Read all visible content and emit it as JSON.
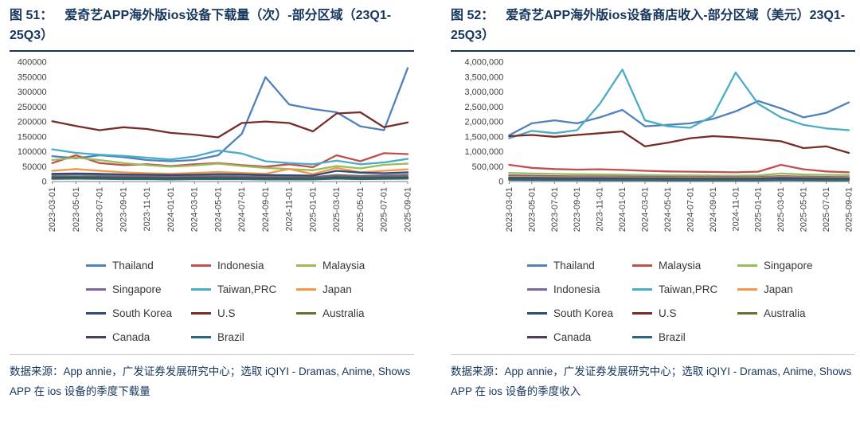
{
  "accent_color": "#17365D",
  "figures": [
    {
      "label": "图 51：",
      "title": "爱奇艺APP海外版ios设备下载量（次）-部分区域（23Q1-25Q3）",
      "source": "数据来源：App annie，广发证券发展研究中心；选取 iQIYI - Dramas, Anime, Shows APP 在 ios 设备的季度下载量"
    },
    {
      "label": "图 52：",
      "title": "爱奇艺APP海外版ios设备商店收入-部分区域（美元）23Q1-25Q3）",
      "source": "数据来源：App annie，广发证券发展研究中心；选取 iQIYI - Dramas, Anime, Shows APP 在 ios 设备的季度收入"
    }
  ],
  "chart_data": [
    {
      "type": "line",
      "title": "图 51： 爱奇艺APP海外版ios设备下载量（次）-部分区域（23Q1-25Q3）",
      "xlabel": "",
      "ylabel": "",
      "grid": false,
      "legend_position": "bottom",
      "ylim": [
        0,
        400000
      ],
      "ytick_values": [
        0,
        50000,
        100000,
        150000,
        200000,
        250000,
        300000,
        350000,
        400000
      ],
      "ytick_labels": [
        "0",
        "50000",
        "100000",
        "150000",
        "200000",
        "250000",
        "300000",
        "350000",
        "400000"
      ],
      "x": [
        "2023-03-01",
        "2023-05-01",
        "2023-07-01",
        "2023-09-01",
        "2023-11-01",
        "2024-01-01",
        "2024-03-01",
        "2024-05-01",
        "2024-07-01",
        "2024-09-01",
        "2024-11-01",
        "2025-01-01",
        "2025-03-01",
        "2025-05-01",
        "2025-07-01",
        "2025-09-01"
      ],
      "series": [
        {
          "name": "Thailand",
          "color": "#4F81BD",
          "values": [
            85000,
            78000,
            88000,
            82000,
            72000,
            68000,
            72000,
            88000,
            160000,
            350000,
            258000,
            243000,
            232000,
            185000,
            172000,
            380000
          ]
        },
        {
          "name": "Indonesia",
          "color": "#C0504D",
          "values": [
            62000,
            88000,
            62000,
            55000,
            58000,
            52000,
            58000,
            62000,
            55000,
            50000,
            58000,
            48000,
            88000,
            68000,
            95000,
            92000
          ]
        },
        {
          "name": "Malaysia",
          "color": "#9BBB59",
          "values": [
            72000,
            80000,
            72000,
            62000,
            55000,
            50000,
            54000,
            60000,
            52000,
            46000,
            42000,
            38000,
            52000,
            44000,
            56000,
            60000
          ]
        },
        {
          "name": "Singapore",
          "color": "#8064A2",
          "values": [
            22000,
            24000,
            22000,
            20000,
            18000,
            17000,
            18000,
            19000,
            18000,
            17000,
            16000,
            15000,
            22000,
            19000,
            21000,
            23000
          ]
        },
        {
          "name": "Taiwan,PRC",
          "color": "#4BACC6",
          "values": [
            108000,
            96000,
            90000,
            86000,
            80000,
            74000,
            84000,
            104000,
            94000,
            68000,
            62000,
            58000,
            70000,
            58000,
            64000,
            76000
          ]
        },
        {
          "name": "Japan",
          "color": "#F79646",
          "values": [
            36000,
            42000,
            36000,
            31000,
            28000,
            26000,
            29000,
            32000,
            29000,
            26000,
            42000,
            25000,
            46000,
            31000,
            36000,
            41000
          ]
        },
        {
          "name": "South Korea",
          "color": "#2C4D75",
          "values": [
            26000,
            27000,
            26000,
            24000,
            23000,
            22000,
            23000,
            25000,
            24000,
            22000,
            21000,
            20000,
            36000,
            30000,
            28000,
            31000
          ]
        },
        {
          "name": "U.S",
          "color": "#772C2A",
          "values": [
            202000,
            186000,
            172000,
            182000,
            176000,
            163000,
            157000,
            148000,
            196000,
            201000,
            196000,
            168000,
            228000,
            232000,
            182000,
            198000
          ]
        },
        {
          "name": "Australia",
          "color": "#5F7530",
          "values": [
            16000,
            17000,
            16000,
            15000,
            14000,
            13000,
            14000,
            15000,
            14000,
            13000,
            13000,
            12000,
            18000,
            15000,
            16000,
            17000
          ]
        },
        {
          "name": "Canada",
          "color": "#4D3B62",
          "values": [
            12000,
            13000,
            12000,
            11000,
            11000,
            10000,
            11000,
            11000,
            11000,
            10000,
            10000,
            9000,
            13000,
            11000,
            12000,
            13000
          ]
        },
        {
          "name": "Brazil",
          "color": "#276A7C",
          "values": [
            9000,
            10000,
            9000,
            8000,
            8000,
            7000,
            8000,
            8000,
            8000,
            7000,
            7000,
            7000,
            10000,
            8000,
            9000,
            10000
          ]
        }
      ]
    },
    {
      "type": "line",
      "title": "图 52： 爱奇艺APP海外版ios设备商店收入-部分区域（美元）23Q1-25Q3）",
      "xlabel": "",
      "ylabel": "",
      "grid": false,
      "legend_position": "bottom",
      "ylim": [
        0,
        4000000
      ],
      "ytick_values": [
        0,
        500000,
        1000000,
        1500000,
        2000000,
        2500000,
        3000000,
        3500000,
        4000000
      ],
      "ytick_labels": [
        "0",
        "500,000",
        "1,000,000",
        "1,500,000",
        "2,000,000",
        "2,500,000",
        "3,000,000",
        "3,500,000",
        "4,000,000"
      ],
      "x": [
        "2023-03-01",
        "2023-05-01",
        "2023-07-01",
        "2023-09-01",
        "2023-11-01",
        "2024-01-01",
        "2024-03-01",
        "2024-05-01",
        "2024-07-01",
        "2024-09-01",
        "2024-11-01",
        "2025-01-01",
        "2025-03-01",
        "2025-05-01",
        "2025-07-01",
        "2025-09-01"
      ],
      "series": [
        {
          "name": "Thailand",
          "color": "#4F81BD",
          "values": [
            1550000,
            1950000,
            2050000,
            1950000,
            2150000,
            2400000,
            1850000,
            1900000,
            1950000,
            2100000,
            2350000,
            2700000,
            2450000,
            2150000,
            2300000,
            2650000
          ]
        },
        {
          "name": "Malaysia",
          "color": "#C0504D",
          "values": [
            560000,
            460000,
            420000,
            400000,
            410000,
            390000,
            360000,
            340000,
            330000,
            320000,
            310000,
            330000,
            560000,
            410000,
            340000,
            310000
          ]
        },
        {
          "name": "Singapore",
          "color": "#9BBB59",
          "values": [
            290000,
            270000,
            255000,
            245000,
            240000,
            230000,
            220000,
            210000,
            205000,
            200000,
            195000,
            205000,
            270000,
            235000,
            225000,
            215000
          ]
        },
        {
          "name": "Indonesia",
          "color": "#8064A2",
          "values": [
            210000,
            195000,
            185000,
            175000,
            175000,
            168000,
            162000,
            158000,
            152000,
            152000,
            148000,
            152000,
            185000,
            165000,
            158000,
            152000
          ]
        },
        {
          "name": "Taiwan,PRC",
          "color": "#4BACC6",
          "values": [
            1450000,
            1700000,
            1620000,
            1720000,
            2600000,
            3750000,
            2050000,
            1850000,
            1800000,
            2200000,
            3650000,
            2600000,
            2150000,
            1900000,
            1780000,
            1720000
          ]
        },
        {
          "name": "Japan",
          "color": "#F79646",
          "values": [
            160000,
            150000,
            145000,
            140000,
            138000,
            135000,
            130000,
            128000,
            125000,
            122000,
            120000,
            125000,
            150000,
            135000,
            128000,
            122000
          ]
        },
        {
          "name": "South Korea",
          "color": "#2C4D75",
          "values": [
            130000,
            125000,
            120000,
            118000,
            115000,
            112000,
            110000,
            108000,
            105000,
            105000,
            102000,
            105000,
            125000,
            112000,
            108000,
            105000
          ]
        },
        {
          "name": "U.S",
          "color": "#772C2A",
          "values": [
            1520000,
            1560000,
            1500000,
            1560000,
            1620000,
            1680000,
            1180000,
            1300000,
            1450000,
            1520000,
            1480000,
            1420000,
            1350000,
            1120000,
            1180000,
            960000
          ]
        },
        {
          "name": "Australia",
          "color": "#5F7530",
          "values": [
            105000,
            100000,
            98000,
            95000,
            92000,
            90000,
            88000,
            86000,
            85000,
            83000,
            82000,
            84000,
            100000,
            90000,
            86000,
            83000
          ]
        },
        {
          "name": "Canada",
          "color": "#4D3B62",
          "values": [
            82000,
            80000,
            78000,
            76000,
            74000,
            72000,
            70000,
            69000,
            68000,
            67000,
            66000,
            68000,
            80000,
            72000,
            69000,
            67000
          ]
        },
        {
          "name": "Brazil",
          "color": "#276A7C",
          "values": [
            55000,
            53000,
            52000,
            50000,
            49000,
            48000,
            47000,
            46000,
            45000,
            45000,
            44000,
            45000,
            52000,
            48000,
            46000,
            45000
          ]
        }
      ]
    }
  ]
}
